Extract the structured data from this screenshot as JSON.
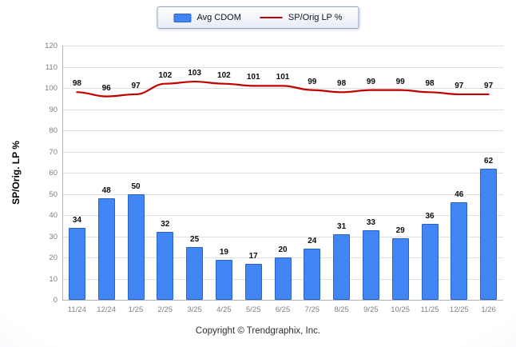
{
  "chart_data": {
    "type": "bar",
    "title": "",
    "xlabel": "",
    "ylabel": "SP/Orig. LP %",
    "categories": [
      "11/24",
      "12/24",
      "1/25",
      "2/25",
      "3/25",
      "4/25",
      "5/25",
      "6/25",
      "7/25",
      "8/25",
      "9/25",
      "10/25",
      "11/25",
      "12/25",
      "1/26"
    ],
    "series": [
      {
        "name": "Avg CDOM",
        "type": "bar",
        "color": "#4285f4",
        "values": [
          34,
          48,
          50,
          32,
          25,
          19,
          17,
          20,
          24,
          31,
          33,
          29,
          36,
          46,
          62
        ]
      },
      {
        "name": "SP/Orig LP %",
        "type": "line",
        "color": "#c00000",
        "values": [
          98,
          96,
          97,
          102,
          103,
          102,
          101,
          101,
          99,
          98,
          99,
          99,
          98,
          97,
          97
        ]
      }
    ],
    "ylim": [
      0,
      120
    ],
    "ytick_labels": [
      0,
      10,
      20,
      30,
      40,
      50,
      60,
      70,
      80,
      90,
      100,
      110,
      120
    ],
    "grid": true,
    "legend_position": "top-center"
  },
  "legend": {
    "items": [
      {
        "label": "Avg CDOM",
        "swatch": "bar",
        "color": "#4285f4"
      },
      {
        "label": "SP/Orig LP %",
        "swatch": "line",
        "color": "#c00000"
      }
    ]
  },
  "footer": {
    "text": "Copyright © Trendgraphix, Inc."
  }
}
